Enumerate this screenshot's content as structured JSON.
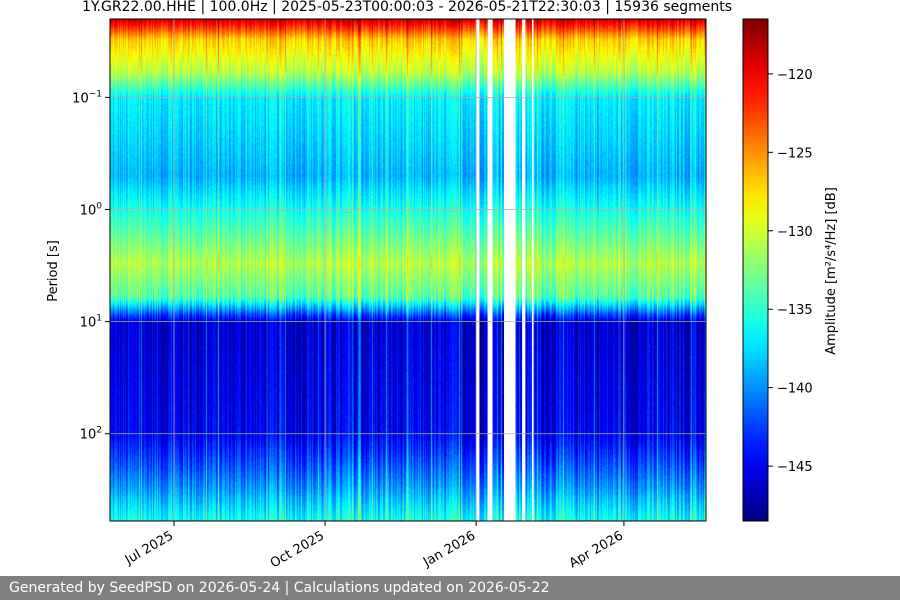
{
  "chart_data": {
    "type": "heatmap",
    "title": "1Y.GR22.00.HHE | 100.0Hz | 2025-05-23T00:00:03 - 2026-05-21T22:30:03 | 15936 segments",
    "xlabel": "",
    "ylabel": "Period [s]",
    "x_range": [
      "2025-05-23",
      "2026-05-21"
    ],
    "x_ticks": [
      {
        "date": "2025-07-01",
        "label": "Jul 2025"
      },
      {
        "date": "2025-10-01",
        "label": "Oct 2025"
      },
      {
        "date": "2026-01-01",
        "label": "Jan 2026"
      },
      {
        "date": "2026-04-01",
        "label": "Apr 2026"
      }
    ],
    "y_scale": "log",
    "y_inverted": true,
    "y_range": [
      0.02,
      600
    ],
    "y_ticks": [
      {
        "value": 0.1,
        "base": "10",
        "exp": "−1"
      },
      {
        "value": 1,
        "base": "10",
        "exp": "0"
      },
      {
        "value": 10,
        "base": "10",
        "exp": "1"
      },
      {
        "value": 100,
        "base": "10",
        "exp": "2"
      }
    ],
    "grid": true,
    "colorbar": {
      "label": "Amplitude [m²/s⁴/Hz] [dB]",
      "colormap": "jet",
      "range": [
        -148.5,
        -116.5
      ],
      "ticks": [
        -120,
        -125,
        -130,
        -135,
        -140,
        -145
      ]
    },
    "data_gaps": [
      [
        "2026-01-01",
        "2026-01-03"
      ],
      [
        "2026-01-08",
        "2026-01-11"
      ],
      [
        "2026-01-18",
        "2026-01-25"
      ],
      [
        "2026-01-29",
        "2026-01-31"
      ],
      [
        "2026-02-04",
        "2026-02-05"
      ]
    ],
    "period_profile": [
      {
        "period": 0.02,
        "amplitude_db": -119
      },
      {
        "period": 0.03,
        "amplitude_db": -127
      },
      {
        "period": 0.06,
        "amplitude_db": -131
      },
      {
        "period": 0.1,
        "amplitude_db": -137
      },
      {
        "period": 0.5,
        "amplitude_db": -139
      },
      {
        "period": 3,
        "amplitude_db": -131
      },
      {
        "period": 6,
        "amplitude_db": -134
      },
      {
        "period": 10,
        "amplitude_db": -146
      },
      {
        "period": 100,
        "amplitude_db": -145
      },
      {
        "period": 300,
        "amplitude_db": -140
      },
      {
        "period": 600,
        "amplitude_db": -136
      }
    ]
  },
  "footer": {
    "text": "Generated by SeedPSD on 2026-05-24 | Calculations updated on 2026-05-22"
  }
}
